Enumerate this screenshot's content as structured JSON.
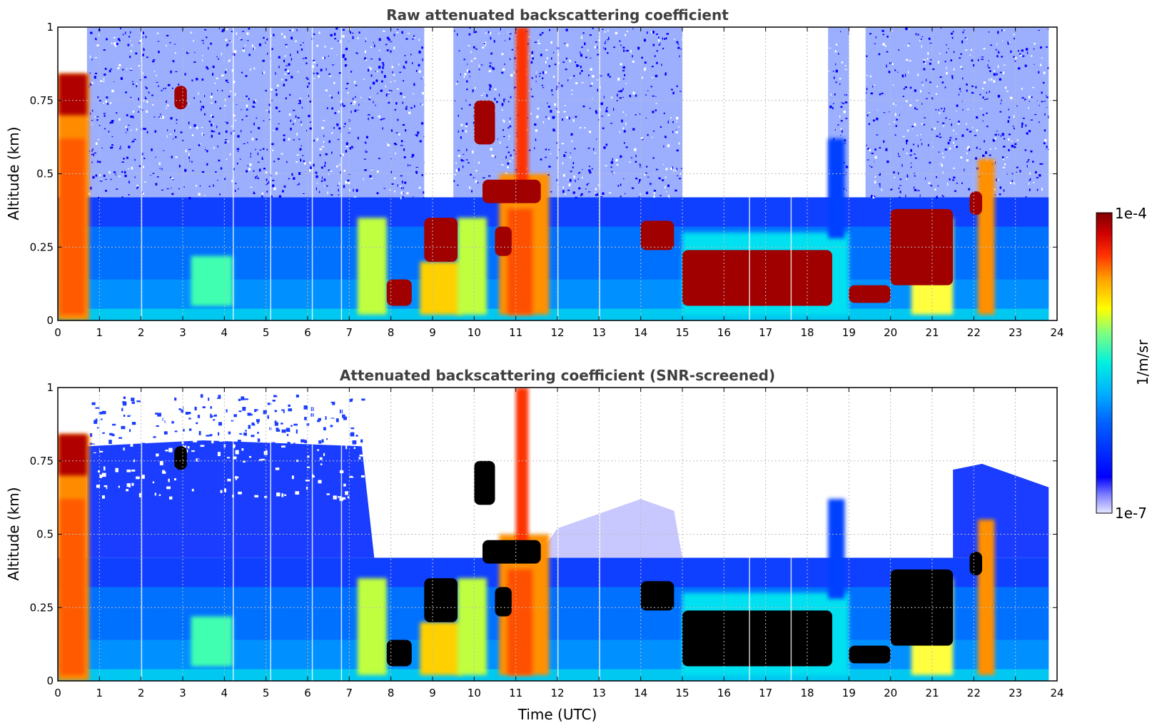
{
  "chart_data": [
    {
      "type": "heatmap",
      "title": "Raw attenuated backscattering coefficient",
      "xlabel": "",
      "ylabel": "Altitude (km)",
      "xlim": [
        0,
        24
      ],
      "ylim": [
        0,
        1
      ],
      "x_ticks": [
        "0",
        "1",
        "2",
        "3",
        "4",
        "5",
        "6",
        "7",
        "8",
        "9",
        "10",
        "11",
        "12",
        "13",
        "14",
        "15",
        "16",
        "17",
        "18",
        "19",
        "20",
        "21",
        "22",
        "23",
        "24"
      ],
      "y_ticks": [
        "0",
        "0.25",
        "0.5",
        "0.75",
        "1"
      ],
      "grid": true,
      "variant": "raw"
    },
    {
      "type": "heatmap",
      "title": "Attenuated backscattering coefficient (SNR-screened)",
      "xlabel": "Time (UTC)",
      "ylabel": "Altitude (km)",
      "xlim": [
        0,
        24
      ],
      "ylim": [
        0,
        1
      ],
      "x_ticks": [
        "0",
        "1",
        "2",
        "3",
        "4",
        "5",
        "6",
        "7",
        "8",
        "9",
        "10",
        "11",
        "12",
        "13",
        "14",
        "15",
        "16",
        "17",
        "18",
        "19",
        "20",
        "21",
        "22",
        "23",
        "24"
      ],
      "y_ticks": [
        "0",
        "0.25",
        "0.5",
        "0.75",
        "1"
      ],
      "grid": true,
      "variant": "screened"
    }
  ],
  "colorbar": {
    "label": "1/m/sr",
    "max_label": "1e-4",
    "min_label": "1e-7",
    "colormap": "jet"
  },
  "colors": {
    "title": "#404040",
    "grid": "#bdbdbd",
    "saturated_screened": "#000000"
  }
}
